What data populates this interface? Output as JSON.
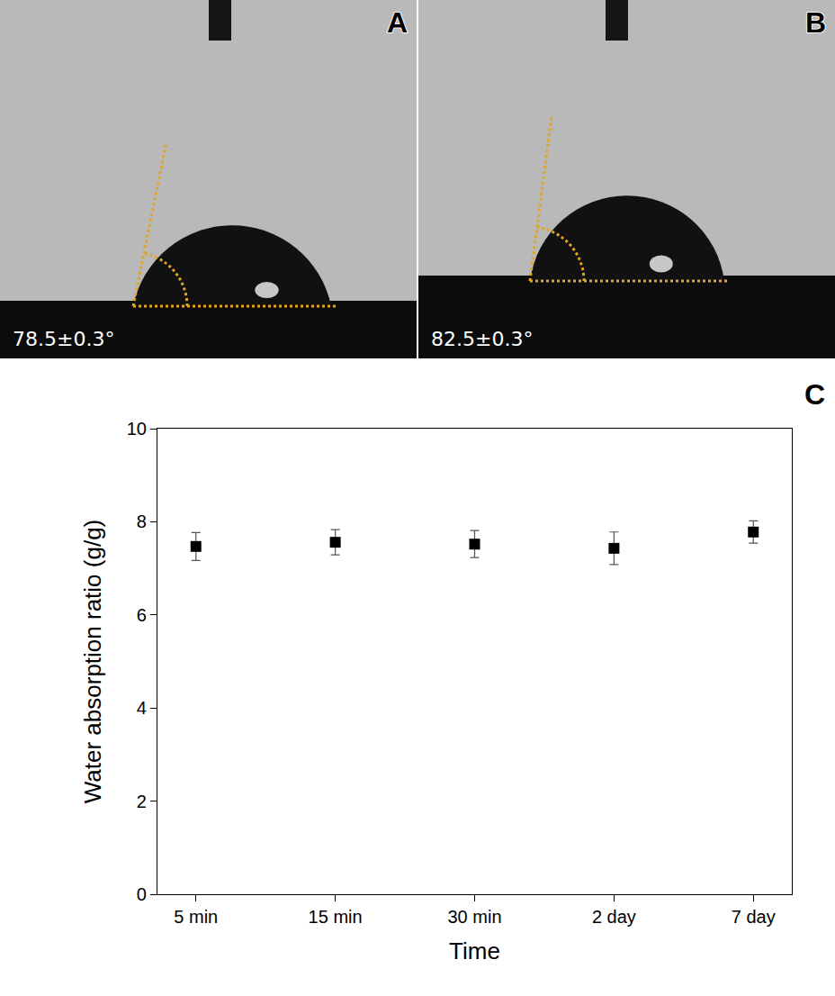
{
  "panels": [
    {
      "panel": "A",
      "label": "78.5±0.3°",
      "contact_angle": 78.5
    },
    {
      "panel": "B",
      "label": "82.5±0.3°",
      "contact_angle": 82.5
    }
  ],
  "chart_data": {
    "panel": "C",
    "type": "scatter",
    "x_label": "Time",
    "y_label": "Water absorption ratio (g/g)",
    "categories": [
      "5 min",
      "15 min",
      "30 min",
      "2 day",
      "7 day"
    ],
    "values": [
      7.47,
      7.56,
      7.52,
      7.43,
      7.78
    ],
    "errors": [
      0.3,
      0.27,
      0.29,
      0.35,
      0.24
    ],
    "ylim": [
      0,
      10
    ],
    "yticks": [
      0,
      2,
      4,
      6,
      8,
      10
    ],
    "color": "#000000",
    "marker": "square",
    "grid": false
  }
}
